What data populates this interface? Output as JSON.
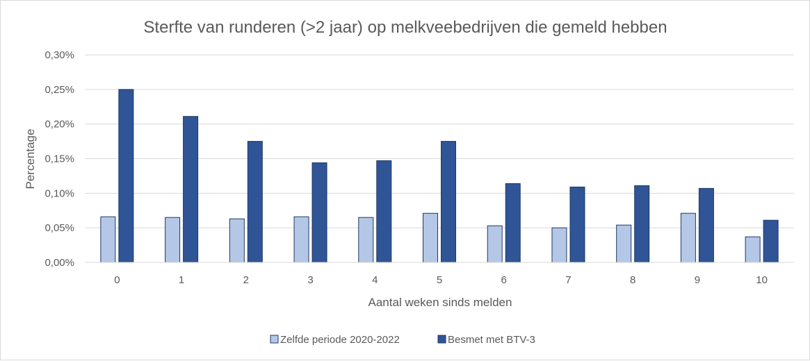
{
  "chart_data": {
    "type": "bar",
    "title": "Sterfte van runderen (>2 jaar) op melkveebedrijven die gemeld hebben",
    "xlabel": "Aantal weken sinds melden",
    "ylabel": "Percentage",
    "categories": [
      "0",
      "1",
      "2",
      "3",
      "4",
      "5",
      "6",
      "7",
      "8",
      "9",
      "10"
    ],
    "ylim": [
      0,
      0.3
    ],
    "yticks": [
      "0,00%",
      "0,05%",
      "0,10%",
      "0,15%",
      "0,20%",
      "0,25%",
      "0,30%"
    ],
    "ytick_values": [
      0,
      0.05,
      0.1,
      0.15,
      0.2,
      0.25,
      0.3
    ],
    "grid": true,
    "legend_position": "bottom",
    "series": [
      {
        "name": "Zelfde periode 2020-2022",
        "color": "#b4c7e7",
        "values": [
          0.066,
          0.065,
          0.063,
          0.066,
          0.065,
          0.071,
          0.053,
          0.05,
          0.054,
          0.071,
          0.037
        ]
      },
      {
        "name": "Besmet met BTV-3",
        "color": "#2f5597",
        "values": [
          0.25,
          0.211,
          0.175,
          0.144,
          0.147,
          0.175,
          0.114,
          0.109,
          0.111,
          0.107,
          0.061
        ]
      }
    ]
  }
}
